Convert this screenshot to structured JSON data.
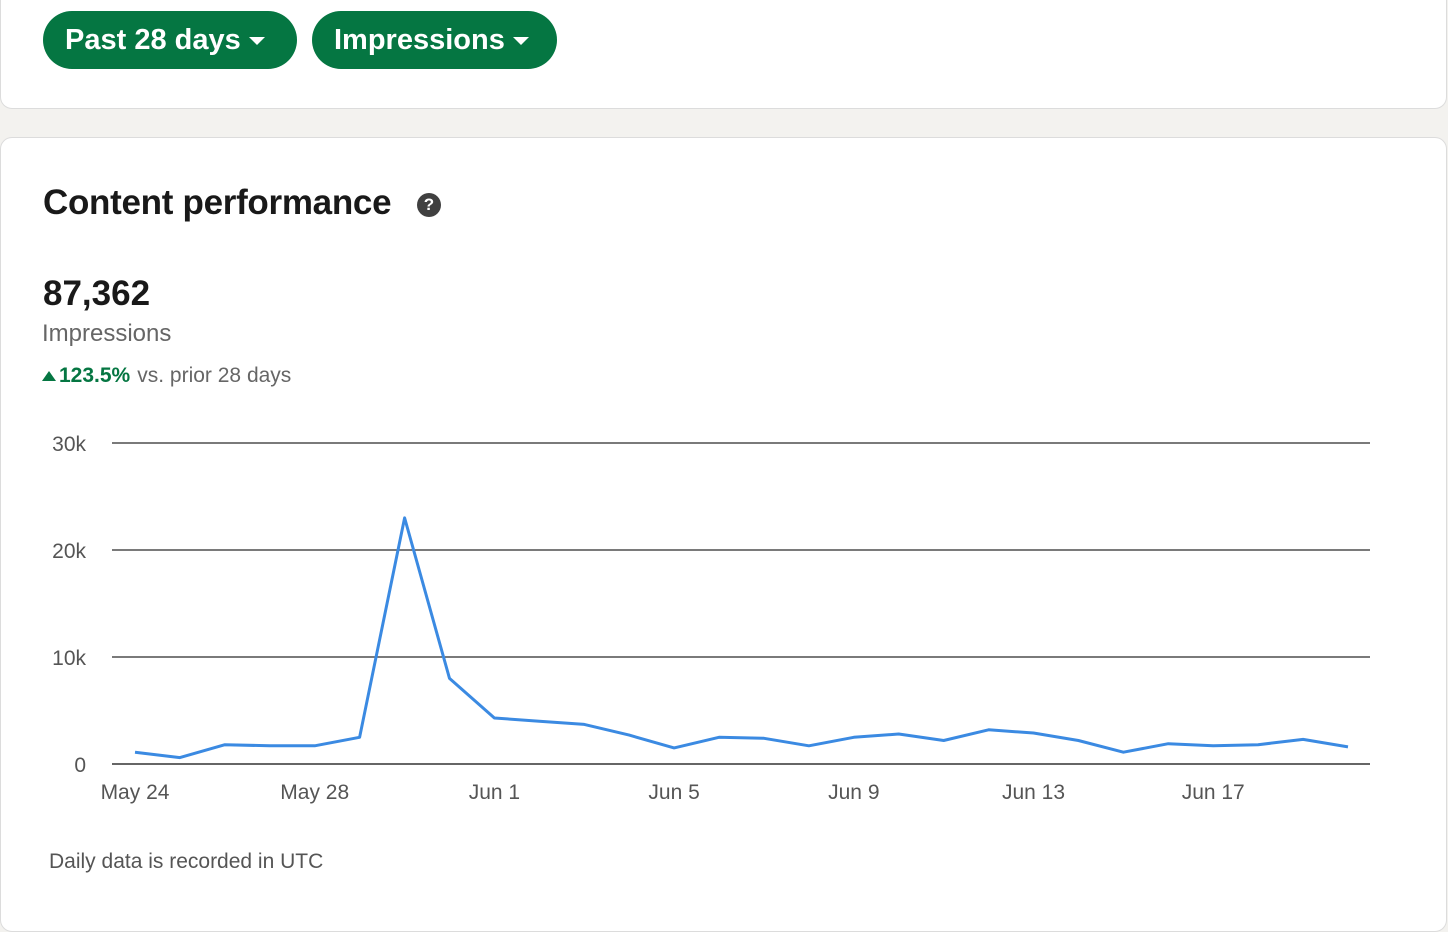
{
  "filters": {
    "time_range_label": "Past 28 days",
    "metric_label": "Impressions"
  },
  "section": {
    "title": "Content performance",
    "help_icon": "question-circle-icon"
  },
  "summary": {
    "total": "87,362",
    "metric": "Impressions",
    "change_value": "123.5%",
    "change_suffix": "vs. prior 28 days",
    "change_direction": "up"
  },
  "footnote": "Daily data is recorded in UTC",
  "colors": {
    "brand_green": "#057642",
    "line_blue": "#3b8ae2"
  },
  "chart_data": {
    "type": "line",
    "x": [
      "May 24",
      "May 25",
      "May 26",
      "May 27",
      "May 28",
      "May 29",
      "May 30",
      "May 31",
      "Jun 1",
      "Jun 2",
      "Jun 3",
      "Jun 4",
      "Jun 5",
      "Jun 6",
      "Jun 7",
      "Jun 8",
      "Jun 9",
      "Jun 10",
      "Jun 11",
      "Jun 12",
      "Jun 13",
      "Jun 14",
      "Jun 15",
      "Jun 16",
      "Jun 17",
      "Jun 18",
      "Jun 19",
      "Jun 20"
    ],
    "x_tick_labels": [
      "May 24",
      "May 28",
      "Jun 1",
      "Jun 5",
      "Jun 9",
      "Jun 13",
      "Jun 17"
    ],
    "series": [
      {
        "values": [
          1100,
          600,
          1800,
          1700,
          1700,
          2500,
          23000,
          8000,
          4300,
          4000,
          3700,
          2700,
          1500,
          2500,
          2400,
          1700,
          2500,
          2800,
          2200,
          3200,
          2900,
          2200,
          1100,
          1900,
          1700,
          1800,
          2300,
          1600
        ]
      }
    ],
    "y_ticks": [
      0,
      10000,
      20000,
      30000
    ],
    "y_tick_labels": [
      "0",
      "10k",
      "20k",
      "30k"
    ],
    "ylim": [
      0,
      30000
    ],
    "grid": true,
    "legend": "none"
  }
}
